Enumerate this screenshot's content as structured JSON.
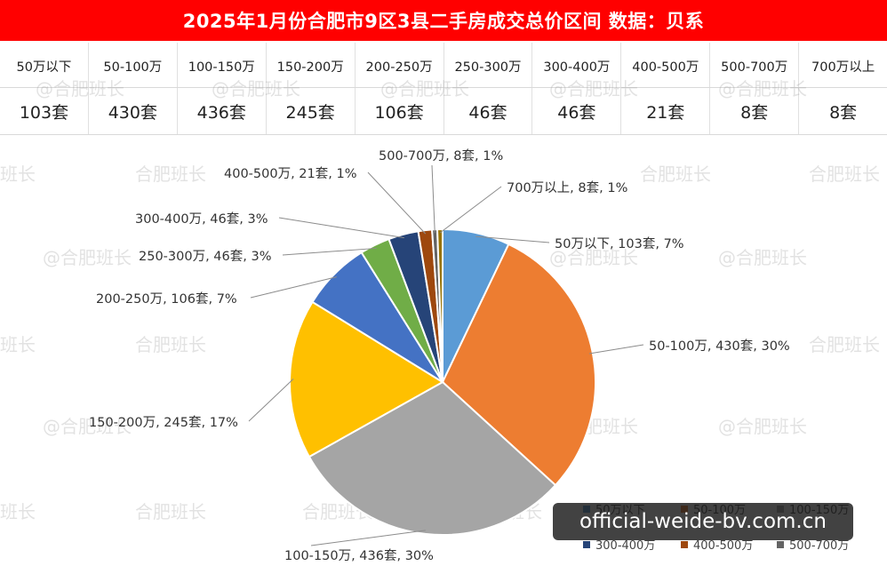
{
  "header": {
    "title": "2025年1月份合肥市9区3县二手房成交总价区间 数据：贝系"
  },
  "table": {
    "headers": [
      "50万以下",
      "50-100万",
      "100-150万",
      "150-200万",
      "200-250万",
      "250-300万",
      "300-400万",
      "400-500万",
      "500-700万",
      "700万以上"
    ],
    "values": [
      "103套",
      "430套",
      "436套",
      "245套",
      "106套",
      "46套",
      "46套",
      "21套",
      "8套",
      "8套"
    ]
  },
  "watermark": {
    "text": "@合肥班长",
    "text_short": "合肥班长",
    "text_tail": "班长"
  },
  "overlay": {
    "text": "official-weide-bv.com.cn"
  },
  "chart_data": {
    "type": "pie",
    "title": "",
    "categories": [
      "50万以下",
      "50-100万",
      "100-150万",
      "150-200万",
      "200-250万",
      "250-300万",
      "300-400万",
      "400-500万",
      "500-700万",
      "700万以上"
    ],
    "values": [
      103,
      430,
      436,
      245,
      106,
      46,
      46,
      21,
      8,
      8
    ],
    "data_labels": [
      "50万以下, 103套, 7%",
      "50-100万, 430套, 30%",
      "100-150万, 436套, 30%",
      "150-200万, 245套, 17%",
      "200-250万, 106套, 7%",
      "250-300万, 46套, 3%",
      "300-400万, 46套, 3%",
      "400-500万, 21套, 1%",
      "500-700万, 8套, 1%",
      "700万以上, 8套, 1%"
    ],
    "colors": [
      "#5b9bd5",
      "#ed7d31",
      "#a5a5a5",
      "#ffc000",
      "#4472c4",
      "#70ad47",
      "#264478",
      "#9e480e",
      "#636363",
      "#997300"
    ],
    "legend": {
      "placement": "bottom-right",
      "items": [
        "50万以下",
        "50-100万",
        "100-150万",
        "300-400万",
        "400-500万",
        "500-700万"
      ]
    }
  }
}
